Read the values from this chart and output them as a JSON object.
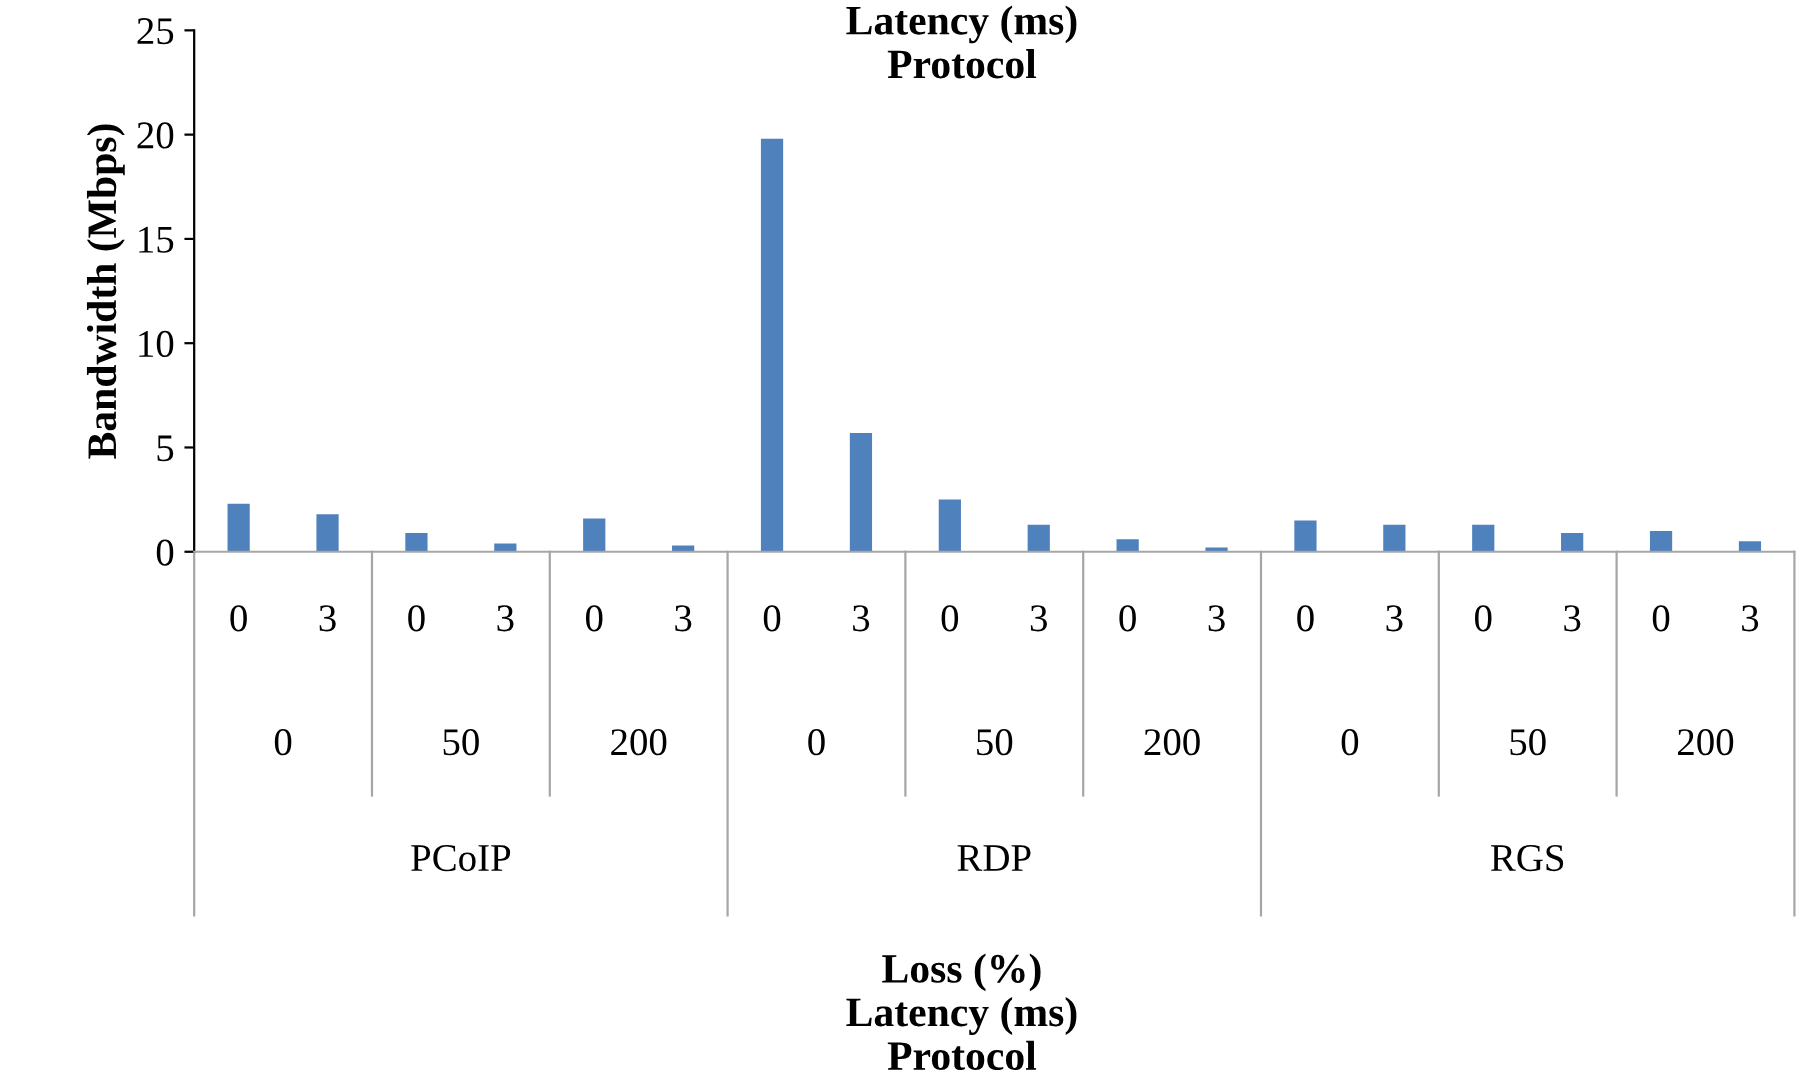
{
  "chart_data": {
    "type": "bar",
    "title": "Latency (ms)\nProtocol",
    "ylabel": "Bandwidth (Mbps)",
    "categories": [
      "0",
      "3",
      "0",
      "3",
      "0",
      "3",
      "0",
      "3",
      "0",
      "3",
      "0",
      "3",
      "0",
      "3",
      "0",
      "3",
      "0",
      "3"
    ],
    "values": [
      2.3,
      1.8,
      0.9,
      0.4,
      1.6,
      0.3,
      19.8,
      5.7,
      2.5,
      1.3,
      0.6,
      0.2,
      1.5,
      1.3,
      1.3,
      0.9,
      1.0,
      0.5
    ],
    "color": "#4f81bd",
    "ylim": [
      0,
      25
    ],
    "yticks": [
      0,
      5,
      10,
      15,
      20,
      25
    ],
    "grid": false,
    "legend": false,
    "annotations": [
      "0",
      "50",
      "200",
      "0",
      "50",
      "200",
      "0",
      "50",
      "200",
      "PCoIP",
      "RDP",
      "RGS",
      "Loss (%)\nLatency (ms)\nProtocol"
    ]
  }
}
